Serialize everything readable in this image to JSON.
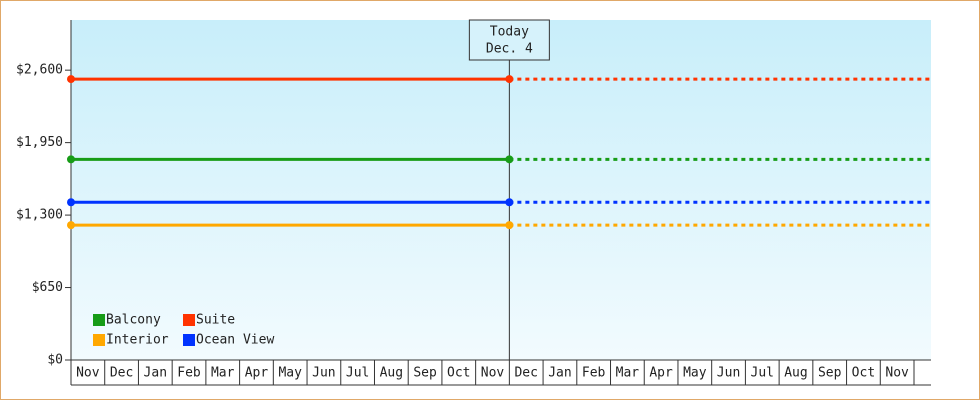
{
  "chart_data": {
    "type": "line",
    "annotation": [
      "Today",
      "Dec. 4"
    ],
    "categories": [
      "Nov",
      "Dec",
      "Jan",
      "Feb",
      "Mar",
      "Apr",
      "May",
      "Jun",
      "Jul",
      "Aug",
      "Sep",
      "Oct",
      "Nov",
      "Dec",
      "Jan",
      "Feb",
      "Mar",
      "Apr",
      "May",
      "Jun",
      "Jul",
      "Aug",
      "Sep",
      "Oct",
      "Nov"
    ],
    "series": [
      {
        "name": "Balcony",
        "color": "#179c17",
        "values": [
          1800,
          1800,
          1800,
          1800,
          1800,
          1800,
          1800,
          1800,
          1800,
          1800,
          1800,
          1800,
          1800,
          1800,
          1800,
          1800,
          1800,
          1800,
          1800,
          1800,
          1800,
          1800,
          1800,
          1800,
          1800
        ]
      },
      {
        "name": "Suite",
        "color": "#ff3300",
        "values": [
          2520,
          2520,
          2520,
          2520,
          2520,
          2520,
          2520,
          2520,
          2520,
          2520,
          2520,
          2520,
          2520,
          2520,
          2520,
          2520,
          2520,
          2520,
          2520,
          2520,
          2520,
          2520,
          2520,
          2520,
          2520
        ]
      },
      {
        "name": "Interior",
        "color": "#ffa800",
        "values": [
          1210,
          1210,
          1210,
          1210,
          1210,
          1210,
          1210,
          1210,
          1210,
          1210,
          1210,
          1210,
          1210,
          1210,
          1210,
          1210,
          1210,
          1210,
          1210,
          1210,
          1210,
          1210,
          1210,
          1210,
          1210
        ]
      },
      {
        "name": "Ocean View",
        "color": "#0033ff",
        "values": [
          1415,
          1415,
          1415,
          1415,
          1415,
          1415,
          1415,
          1415,
          1415,
          1415,
          1415,
          1415,
          1415,
          1415,
          1415,
          1415,
          1415,
          1415,
          1415,
          1415,
          1415,
          1415,
          1415,
          1415,
          1415
        ]
      }
    ],
    "ylim": [
      0,
      3050
    ],
    "yticks": [
      {
        "value": 0,
        "label": "$0"
      },
      {
        "value": 650,
        "label": "$650"
      },
      {
        "value": 1300,
        "label": "$1,300"
      },
      {
        "value": 1950,
        "label": "$1,950"
      },
      {
        "value": 2600,
        "label": "$2,600"
      }
    ],
    "legend": "lower left"
  }
}
